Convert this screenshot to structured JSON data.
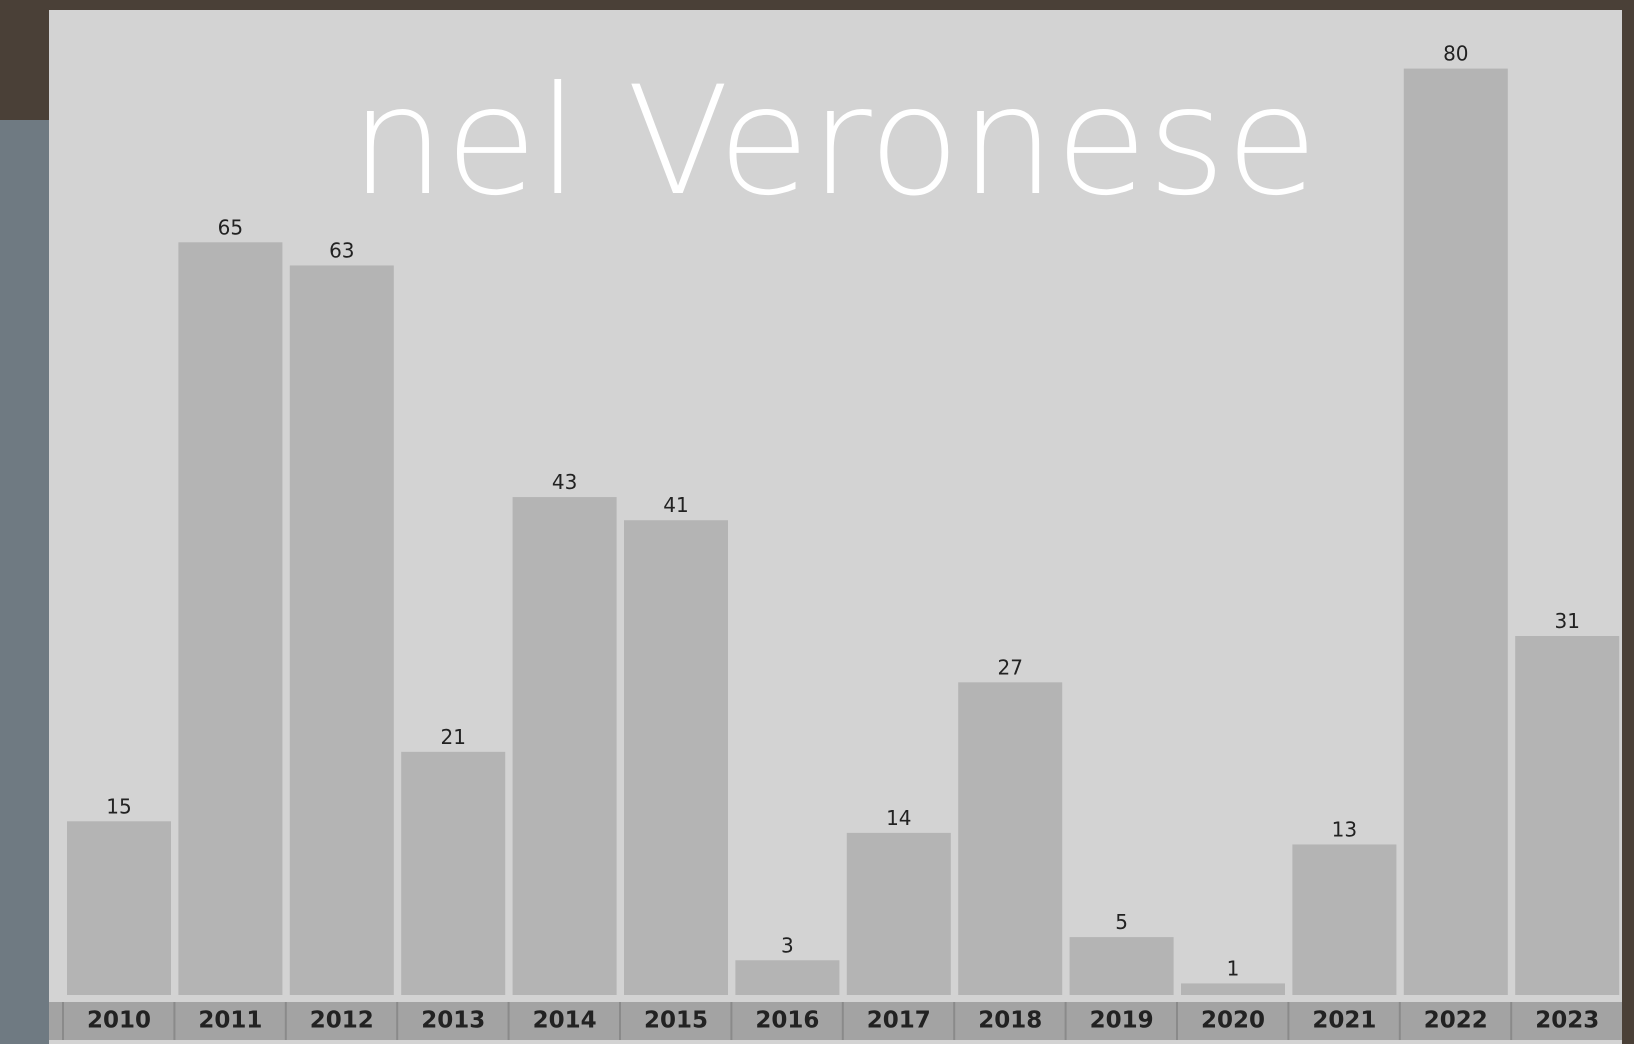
{
  "chart_data": {
    "type": "bar",
    "title": "nel Veronese",
    "categories": [
      "2010",
      "2011",
      "2012",
      "2013",
      "2014",
      "2015",
      "2016",
      "2017",
      "2018",
      "2019",
      "2020",
      "2021",
      "2022",
      "2023"
    ],
    "values": [
      15,
      65,
      63,
      21,
      43,
      41,
      3,
      14,
      27,
      5,
      1,
      13,
      80,
      31
    ],
    "color": "#b4b4b4"
  }
}
